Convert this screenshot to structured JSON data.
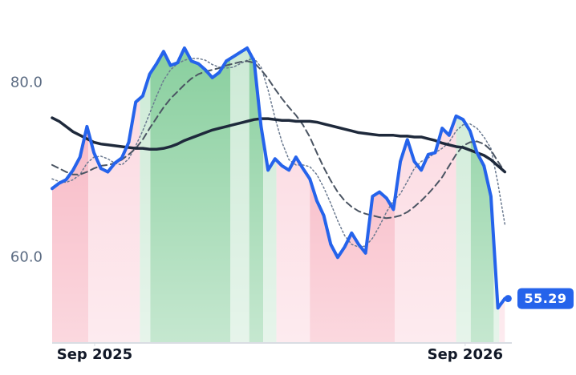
{
  "chart_data": {
    "type": "line",
    "x": [
      0,
      1,
      2,
      3,
      4,
      5,
      6,
      7,
      8,
      9,
      10,
      11,
      12,
      13,
      14,
      15,
      16,
      17,
      18,
      19,
      20,
      21,
      22,
      23,
      24,
      25,
      26,
      27,
      28,
      29,
      30,
      31,
      32,
      33,
      34,
      35,
      36,
      37,
      38,
      39,
      40,
      41,
      42,
      43,
      44,
      45,
      46,
      47,
      48,
      49,
      50,
      51,
      52,
      53,
      54,
      55,
      56,
      57,
      58,
      59,
      60,
      61,
      62,
      63,
      64,
      65
    ],
    "xlim": [
      0,
      66
    ],
    "xticks": [
      {
        "value": 6.1,
        "label": "Sep 2025"
      },
      {
        "value": 59.3,
        "label": "Sep 2026"
      }
    ],
    "ylim": [
      50.2,
      89.5
    ],
    "yticks": [
      {
        "value": 60,
        "label": "60.0"
      },
      {
        "value": 80,
        "label": "80.0"
      }
    ],
    "series": [
      {
        "color": "#2563eb",
        "style": "solid",
        "values": [
          67.9,
          68.5,
          68.9,
          70.0,
          71.5,
          75.0,
          72.0,
          70.2,
          69.8,
          70.8,
          71.4,
          73.2,
          77.8,
          78.5,
          81.0,
          82.2,
          83.6,
          82.0,
          82.3,
          84.0,
          82.5,
          82.2,
          81.5,
          80.6,
          81.2,
          82.5,
          83.0,
          83.5,
          84.0,
          82.5,
          75.0,
          70.0,
          71.3,
          70.5,
          70.0,
          71.5,
          70.2,
          69.0,
          66.5,
          64.8,
          61.5,
          60.0,
          61.2,
          62.8,
          61.5,
          60.5,
          67.0,
          67.5,
          66.8,
          65.5,
          71.0,
          73.5,
          71.0,
          70.0,
          71.8,
          72.0,
          74.8,
          74.0,
          76.2,
          75.8,
          74.5,
          72.0,
          70.5,
          67.0,
          54.2,
          55.29
        ]
      },
      {
        "color": "#1e293b",
        "style": "solid",
        "values": [
          76.0,
          75.6,
          75.0,
          74.4,
          74.0,
          73.6,
          73.2,
          73.0,
          72.9,
          72.8,
          72.7,
          72.6,
          72.5,
          72.5,
          72.4,
          72.4,
          72.5,
          72.7,
          73.0,
          73.4,
          73.7,
          74.0,
          74.3,
          74.6,
          74.8,
          75.0,
          75.2,
          75.4,
          75.6,
          75.8,
          75.9,
          75.9,
          75.8,
          75.7,
          75.7,
          75.6,
          75.6,
          75.6,
          75.5,
          75.3,
          75.1,
          74.9,
          74.7,
          74.5,
          74.3,
          74.2,
          74.1,
          74.0,
          74.0,
          74.0,
          73.9,
          73.9,
          73.8,
          73.8,
          73.6,
          73.4,
          73.1,
          72.9,
          72.7,
          72.6,
          72.3,
          72.0,
          71.7,
          71.2,
          70.5,
          69.8
        ]
      },
      {
        "color": "#4b5563",
        "style": "dashed",
        "values": [
          70.6,
          70.2,
          69.8,
          69.5,
          69.5,
          69.8,
          70.2,
          70.5,
          70.6,
          70.8,
          71.2,
          71.8,
          72.5,
          73.5,
          74.8,
          76.0,
          77.2,
          78.2,
          79.0,
          79.8,
          80.5,
          81.0,
          81.3,
          81.5,
          81.7,
          82.0,
          82.2,
          82.4,
          82.5,
          82.3,
          81.5,
          80.5,
          79.3,
          78.2,
          77.2,
          76.3,
          75.2,
          73.8,
          72.0,
          70.3,
          68.8,
          67.5,
          66.5,
          65.8,
          65.3,
          65.0,
          64.8,
          64.6,
          64.5,
          64.6,
          64.8,
          65.2,
          65.8,
          66.5,
          67.3,
          68.2,
          69.2,
          70.5,
          71.8,
          72.8,
          73.2,
          73.3,
          73.0,
          72.3,
          71.0,
          69.8
        ]
      },
      {
        "color": "#6b7a90",
        "style": "dotted",
        "values": [
          69.0,
          68.7,
          68.6,
          68.9,
          69.5,
          70.8,
          71.5,
          71.6,
          71.3,
          70.8,
          70.6,
          71.3,
          72.8,
          74.5,
          76.5,
          78.5,
          80.3,
          81.5,
          82.2,
          82.6,
          82.8,
          82.8,
          82.6,
          82.1,
          81.8,
          81.7,
          81.8,
          82.2,
          82.6,
          82.8,
          81.8,
          79.2,
          76.0,
          73.2,
          71.2,
          70.6,
          70.6,
          70.4,
          69.5,
          68.0,
          66.2,
          64.2,
          62.5,
          61.5,
          61.2,
          61.3,
          62.2,
          63.6,
          65.2,
          66.5,
          67.3,
          68.7,
          70.2,
          71.0,
          71.4,
          72.0,
          72.5,
          73.2,
          74.5,
          75.2,
          75.3,
          74.8,
          73.8,
          72.5,
          68.5,
          63.8
        ]
      }
    ],
    "bands": [
      {
        "start": 0,
        "end": 5.2,
        "color": "#f6a9b8"
      },
      {
        "start": 5.2,
        "end": 12.6,
        "color": "#fbd3dc"
      },
      {
        "start": 12.6,
        "end": 14.1,
        "color": "#c8e8d2"
      },
      {
        "start": 14.1,
        "end": 25.6,
        "color": "#7fcb96"
      },
      {
        "start": 25.6,
        "end": 28.3,
        "color": "#c8e8d2"
      },
      {
        "start": 28.3,
        "end": 30.3,
        "color": "#7fcb96"
      },
      {
        "start": 30.3,
        "end": 32.2,
        "color": "#c8e8d2"
      },
      {
        "start": 32.2,
        "end": 37.0,
        "color": "#fbd3dc"
      },
      {
        "start": 37.0,
        "end": 49.2,
        "color": "#f6a9b8"
      },
      {
        "start": 49.2,
        "end": 58.0,
        "color": "#fbd3dc"
      },
      {
        "start": 58.0,
        "end": 60.1,
        "color": "#c8e8d2"
      },
      {
        "start": 60.1,
        "end": 63.4,
        "color": "#7fcb96"
      },
      {
        "start": 63.4,
        "end": 64.2,
        "color": "#c8e8d2"
      },
      {
        "start": 64.2,
        "end": 65,
        "color": "#fbd3dc"
      }
    ],
    "badge_color": "#2563eb"
  }
}
